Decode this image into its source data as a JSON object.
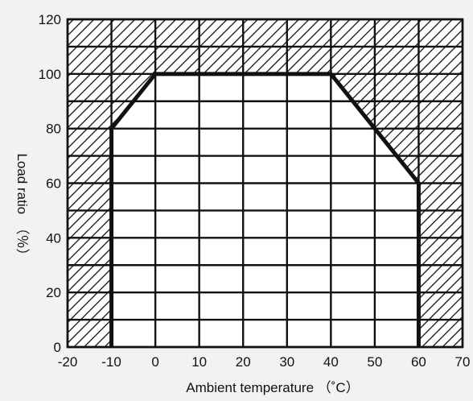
{
  "chart_data": {
    "type": "area",
    "xlabel": "Ambient temperature （˚C）",
    "ylabel": "Load ratio　（％）",
    "x_ticks": [
      -20,
      -10,
      0,
      10,
      20,
      30,
      40,
      50,
      60,
      70
    ],
    "y_ticks": [
      0,
      20,
      40,
      60,
      80,
      100,
      120
    ],
    "xlim": [
      -20,
      70
    ],
    "ylim": [
      0,
      120
    ],
    "grid": true,
    "derating_curve": {
      "x": [
        -10,
        -10,
        0,
        40,
        60,
        60
      ],
      "y": [
        0,
        80,
        100,
        100,
        60,
        0
      ]
    },
    "hatched_region": "outside curve (not allowed)"
  }
}
